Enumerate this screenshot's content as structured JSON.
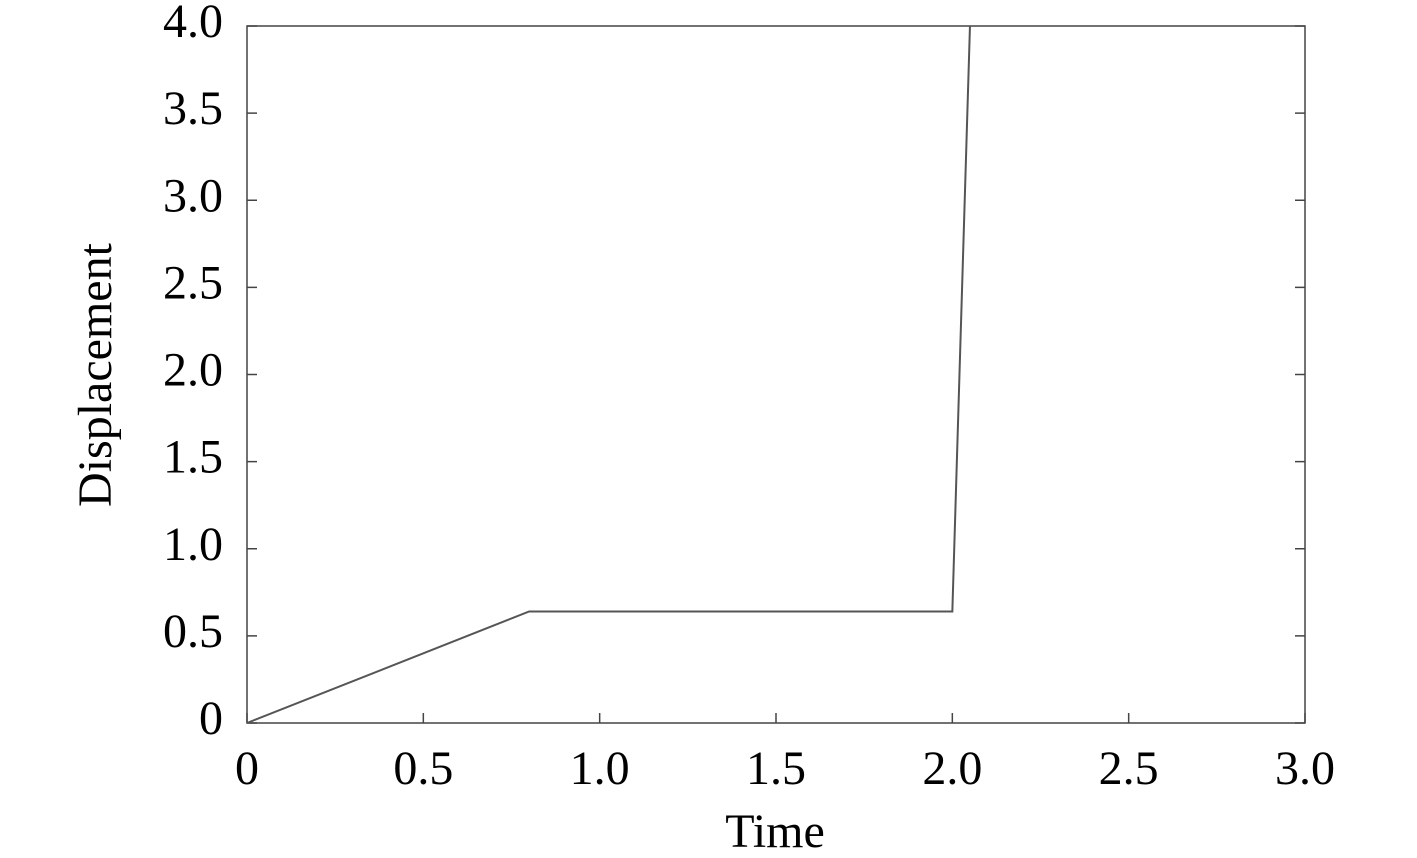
{
  "chart_data": {
    "type": "line",
    "xlabel": "Time",
    "ylabel": "Displacement",
    "x": [
      0,
      0.8,
      2.0,
      2.05
    ],
    "values": [
      0,
      0.64,
      0.64,
      4.0
    ],
    "color": "#555555",
    "xlim": [
      0,
      3.0
    ],
    "ylim": [
      0,
      4.0
    ],
    "xticks": [
      0,
      0.5,
      {
        "value": 1,
        "label": "1.0"
      },
      1.5,
      {
        "value": 2,
        "label": "2.0"
      },
      2.5,
      {
        "value": 3,
        "label": "3.0"
      }
    ],
    "yticks": [
      0,
      0.5,
      {
        "value": 1,
        "label": "1.0"
      },
      1.5,
      {
        "value": 2,
        "label": "2.0"
      },
      2.5,
      {
        "value": 3,
        "label": "3.0"
      },
      3.5,
      {
        "value": 4,
        "label": "4.0"
      }
    ],
    "grid": false
  }
}
